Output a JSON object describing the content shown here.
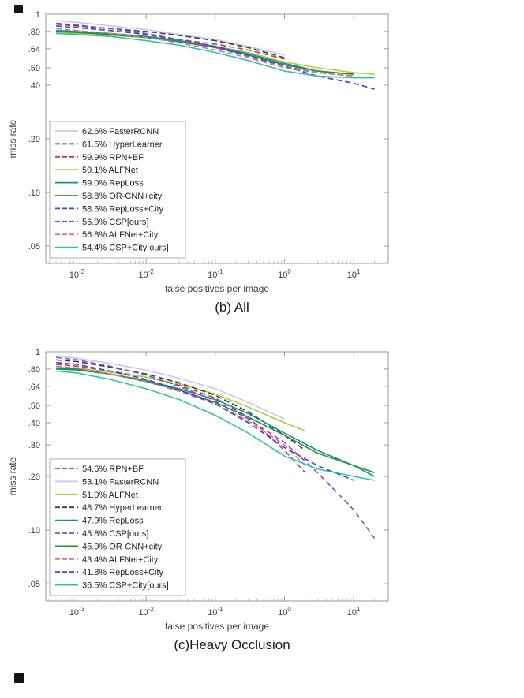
{
  "page": {
    "background": "#ffffff"
  },
  "chart_data": [
    {
      "type": "line",
      "caption": "(b) All",
      "xlabel": "false positives per image",
      "ylabel": "miss rate",
      "x_scale": "log",
      "y_scale": "log",
      "xlog_range": [
        -3.45,
        1.5
      ],
      "ylim": [
        0.04,
        1.0
      ],
      "x_tick_exponents": [
        -3,
        -2,
        -1,
        0,
        1
      ],
      "y_ticks": [
        {
          "v": 1,
          "label": "1"
        },
        {
          "v": 0.8,
          "label": ".80"
        },
        {
          "v": 0.64,
          "label": ".64"
        },
        {
          "v": 0.5,
          "label": ".50"
        },
        {
          "v": 0.4,
          "label": ".40"
        },
        {
          "v": 0.2,
          "label": ".20"
        },
        {
          "v": 0.1,
          "label": ".10"
        },
        {
          "v": 0.05,
          "label": ".05"
        }
      ],
      "axis_color": "#9a9a9a",
      "text_color": "#3a3a3a",
      "legend_position": "bottom-left",
      "series": [
        {
          "label": "62.6% FasterRCNN",
          "color": "#c7c7ee",
          "dash": "solid",
          "x": [
            0.0005,
            0.001,
            0.003,
            0.01,
            0.03,
            0.1,
            0.3,
            1
          ],
          "y": [
            0.92,
            0.9,
            0.86,
            0.82,
            0.77,
            0.72,
            0.66,
            0.59
          ]
        },
        {
          "label": "61.5% HyperLearner",
          "color": "#3d3d3d",
          "dash": "dashed",
          "x": [
            0.0005,
            0.001,
            0.003,
            0.01,
            0.03,
            0.1,
            0.3,
            1
          ],
          "y": [
            0.88,
            0.86,
            0.83,
            0.8,
            0.76,
            0.71,
            0.65,
            0.57
          ]
        },
        {
          "label": "59.9% RPN+BF",
          "color": "#c13b52",
          "dash": "dashed",
          "x": [
            0.0005,
            0.001,
            0.003,
            0.01,
            0.03,
            0.1,
            0.3,
            1
          ],
          "y": [
            0.8,
            0.79,
            0.77,
            0.75,
            0.72,
            0.68,
            0.63,
            0.56
          ]
        },
        {
          "label": "59.1% ALFNet",
          "color": "#a8d438",
          "dash": "solid",
          "x": [
            0.0005,
            0.001,
            0.003,
            0.01,
            0.03,
            0.1,
            0.3,
            1,
            3,
            10,
            20
          ],
          "y": [
            0.79,
            0.78,
            0.76,
            0.74,
            0.71,
            0.66,
            0.61,
            0.54,
            0.5,
            0.47,
            0.46
          ]
        },
        {
          "label": "59.0% RepLoss",
          "color": "#17918f",
          "dash": "solid",
          "x": [
            0.0005,
            0.001,
            0.003,
            0.01,
            0.03,
            0.1,
            0.3,
            1,
            3,
            10
          ],
          "y": [
            0.81,
            0.8,
            0.78,
            0.75,
            0.71,
            0.66,
            0.6,
            0.53,
            0.48,
            0.46
          ]
        },
        {
          "label": "58.8% OR-CNN+city",
          "color": "#2e8b3a",
          "dash": "solid",
          "x": [
            0.0005,
            0.001,
            0.003,
            0.01,
            0.03,
            0.1,
            0.3,
            1,
            3,
            10
          ],
          "y": [
            0.8,
            0.79,
            0.77,
            0.74,
            0.7,
            0.65,
            0.59,
            0.52,
            0.48,
            0.46
          ]
        },
        {
          "label": "58.6% RepLoss+City",
          "color": "#4343cf",
          "dash": "dashed",
          "x": [
            0.0005,
            0.001,
            0.003,
            0.01,
            0.03,
            0.1,
            0.3,
            1,
            3,
            10,
            20
          ],
          "y": [
            0.86,
            0.84,
            0.81,
            0.77,
            0.72,
            0.66,
            0.59,
            0.51,
            0.45,
            0.41,
            0.38
          ]
        },
        {
          "label": "56.9% CSP[ours]",
          "color": "#7a54c9",
          "dash": "dashed",
          "x": [
            0.0005,
            0.001,
            0.003,
            0.01,
            0.03,
            0.1,
            0.3,
            1,
            3,
            10
          ],
          "y": [
            0.89,
            0.87,
            0.83,
            0.78,
            0.72,
            0.65,
            0.58,
            0.51,
            0.47,
            0.45
          ]
        },
        {
          "label": "56.8% ALFNet+City",
          "color": "#e0708e",
          "dash": "dashed",
          "x": [
            0.0005,
            0.001,
            0.003,
            0.01,
            0.03,
            0.1,
            0.3,
            1,
            3,
            10
          ],
          "y": [
            0.83,
            0.81,
            0.78,
            0.74,
            0.69,
            0.63,
            0.57,
            0.5,
            0.47,
            0.45
          ]
        },
        {
          "label": "54.4% CSP+City[ours]",
          "color": "#2cc3a2",
          "dash": "solid",
          "x": [
            0.0005,
            0.001,
            0.003,
            0.01,
            0.03,
            0.1,
            0.3,
            1,
            3,
            10,
            20
          ],
          "y": [
            0.78,
            0.77,
            0.75,
            0.71,
            0.67,
            0.61,
            0.55,
            0.48,
            0.45,
            0.44,
            0.44
          ]
        }
      ]
    },
    {
      "type": "line",
      "caption": "(c)Heavy Occlusion",
      "xlabel": "false positives per image",
      "ylabel": "miss rate",
      "x_scale": "log",
      "y_scale": "log",
      "xlog_range": [
        -3.45,
        1.5
      ],
      "ylim": [
        0.04,
        1.0
      ],
      "x_tick_exponents": [
        -3,
        -2,
        -1,
        0,
        1
      ],
      "y_ticks": [
        {
          "v": 1,
          "label": "1"
        },
        {
          "v": 0.8,
          "label": ".80"
        },
        {
          "v": 0.64,
          "label": ".64"
        },
        {
          "v": 0.5,
          "label": ".50"
        },
        {
          "v": 0.4,
          "label": ".40"
        },
        {
          "v": 0.3,
          "label": ".30"
        },
        {
          "v": 0.2,
          "label": ".20"
        },
        {
          "v": 0.1,
          "label": ".10"
        },
        {
          "v": 0.05,
          "label": ".05"
        }
      ],
      "axis_color": "#9a9a9a",
      "text_color": "#3a3a3a",
      "legend_position": "bottom-left",
      "series": [
        {
          "label": "54.6% RPN+BF",
          "color": "#c13b52",
          "dash": "dashed",
          "x": [
            0.0005,
            0.001,
            0.003,
            0.01,
            0.03,
            0.1,
            0.3,
            1,
            2
          ],
          "y": [
            0.85,
            0.83,
            0.78,
            0.72,
            0.65,
            0.55,
            0.43,
            0.28,
            0.21
          ]
        },
        {
          "label": "53.1% FasterRCNN",
          "color": "#c7c7ee",
          "dash": "solid",
          "x": [
            0.0005,
            0.001,
            0.003,
            0.01,
            0.03,
            0.1,
            0.3,
            1
          ],
          "y": [
            0.95,
            0.92,
            0.86,
            0.79,
            0.71,
            0.62,
            0.52,
            0.42
          ]
        },
        {
          "label": "51.0% ALFNet",
          "color": "#a8d438",
          "dash": "solid",
          "x": [
            0.0005,
            0.001,
            0.003,
            0.01,
            0.03,
            0.1,
            0.3,
            1,
            2
          ],
          "y": [
            0.82,
            0.81,
            0.77,
            0.72,
            0.66,
            0.58,
            0.49,
            0.4,
            0.36
          ]
        },
        {
          "label": "48.7% HyperLearner",
          "color": "#3d3d3d",
          "dash": "dashed",
          "x": [
            0.0005,
            0.001,
            0.003,
            0.01,
            0.03,
            0.1,
            0.3,
            1,
            2
          ],
          "y": [
            0.9,
            0.88,
            0.82,
            0.75,
            0.67,
            0.57,
            0.46,
            0.34,
            0.28
          ]
        },
        {
          "label": "47.9% RepLoss",
          "color": "#17918f",
          "dash": "solid",
          "x": [
            0.0005,
            0.001,
            0.003,
            0.01,
            0.03,
            0.1,
            0.3,
            1,
            3,
            10,
            20
          ],
          "y": [
            0.8,
            0.79,
            0.75,
            0.69,
            0.62,
            0.54,
            0.45,
            0.35,
            0.28,
            0.23,
            0.2
          ]
        },
        {
          "label": "45.8% CSP[ours]",
          "color": "#7a54c9",
          "dash": "dashed",
          "x": [
            0.0005,
            0.001,
            0.003,
            0.01,
            0.03,
            0.1,
            0.3,
            1,
            3,
            10,
            20
          ],
          "y": [
            0.93,
            0.9,
            0.83,
            0.74,
            0.64,
            0.53,
            0.42,
            0.31,
            0.21,
            0.13,
            0.09
          ]
        },
        {
          "label": "45.0% OR-CNN+city",
          "color": "#2e8b3a",
          "dash": "solid",
          "x": [
            0.0005,
            0.001,
            0.003,
            0.01,
            0.03,
            0.1,
            0.3,
            1,
            3,
            10,
            20
          ],
          "y": [
            0.81,
            0.8,
            0.75,
            0.68,
            0.61,
            0.52,
            0.43,
            0.34,
            0.27,
            0.23,
            0.21
          ]
        },
        {
          "label": "43.4% ALFNet+City",
          "color": "#e0708e",
          "dash": "dashed",
          "x": [
            0.0005,
            0.001,
            0.003,
            0.01,
            0.03,
            0.1,
            0.3,
            1,
            2
          ],
          "y": [
            0.83,
            0.81,
            0.75,
            0.68,
            0.6,
            0.51,
            0.41,
            0.3,
            0.23
          ]
        },
        {
          "label": "41.8% RepLoss+City",
          "color": "#4343cf",
          "dash": "dashed",
          "x": [
            0.0005,
            0.001,
            0.003,
            0.01,
            0.03,
            0.1,
            0.3,
            1,
            3,
            10
          ],
          "y": [
            0.87,
            0.85,
            0.78,
            0.7,
            0.61,
            0.51,
            0.4,
            0.29,
            0.23,
            0.19
          ]
        },
        {
          "label": "36.5% CSP+City[ours]",
          "color": "#2cc3a2",
          "dash": "solid",
          "x": [
            0.0005,
            0.001,
            0.003,
            0.01,
            0.03,
            0.1,
            0.3,
            1,
            3,
            10,
            20
          ],
          "y": [
            0.78,
            0.76,
            0.7,
            0.62,
            0.54,
            0.44,
            0.35,
            0.26,
            0.22,
            0.2,
            0.19
          ]
        }
      ]
    }
  ]
}
